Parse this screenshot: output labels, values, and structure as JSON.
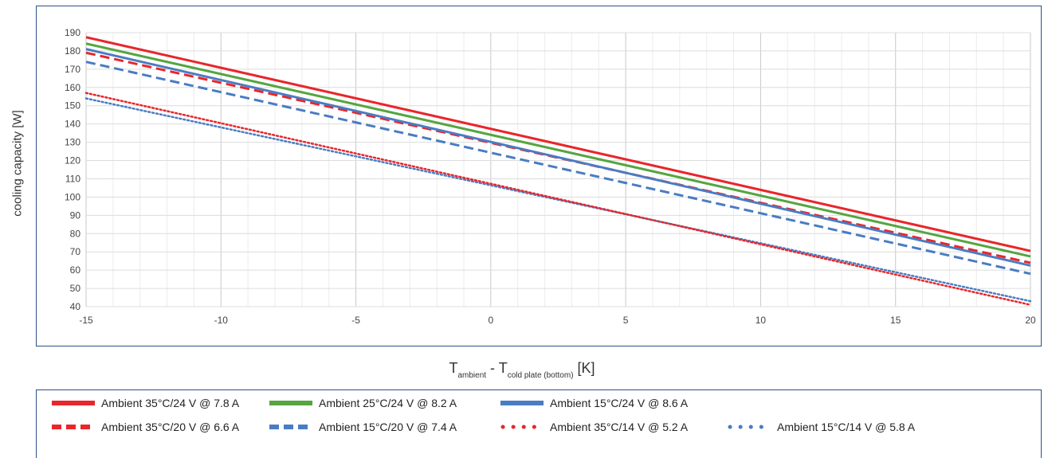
{
  "chart_data": {
    "type": "line",
    "xlabel": {
      "main": "T",
      "sub1": "ambient",
      "mid": " - T",
      "sub2": "cold plate (bottom)",
      "unit": " [K]"
    },
    "ylabel": "cooling capacity [W]",
    "xlim": [
      -15,
      20
    ],
    "ylim": [
      40,
      190
    ],
    "xticks": [
      -15,
      -10,
      -5,
      0,
      5,
      10,
      15,
      20
    ],
    "yticks": [
      40,
      50,
      60,
      70,
      80,
      90,
      100,
      110,
      120,
      130,
      140,
      150,
      160,
      170,
      180,
      190
    ],
    "grid": true,
    "legend_position": "bottom",
    "series": [
      {
        "name": "Ambient 35°C/24 V @ 7.8 A",
        "color": "#e8262b",
        "style": "solid",
        "x": [
          -15,
          20
        ],
        "y": [
          187.5,
          70.5
        ]
      },
      {
        "name": "Ambient 25°C/24 V @ 8.2 A",
        "color": "#55a540",
        "style": "solid",
        "x": [
          -15,
          20
        ],
        "y": [
          184,
          67.5
        ]
      },
      {
        "name": "Ambient 15°C/24 V @ 8.6 A",
        "color": "#4a7cc2",
        "style": "solid",
        "x": [
          -15,
          20
        ],
        "y": [
          181,
          62.5
        ]
      },
      {
        "name": "Ambient 35°C/20 V @ 6.6 A",
        "color": "#e8262b",
        "style": "dashed",
        "x": [
          -15,
          20
        ],
        "y": [
          179,
          64
        ]
      },
      {
        "name": "Ambient 15°C/20 V @ 7.4 A",
        "color": "#4a7cc2",
        "style": "dashed",
        "x": [
          -15,
          20
        ],
        "y": [
          174,
          58
        ]
      },
      {
        "name": "Ambient 35°C/14 V @ 5.2 A",
        "color": "#e8262b",
        "style": "dotted",
        "x": [
          -15,
          20
        ],
        "y": [
          157,
          41
        ]
      },
      {
        "name": "Ambient 15°C/14 V @ 5.8 A",
        "color": "#4a7cc2",
        "style": "dotted",
        "x": [
          -15,
          20
        ],
        "y": [
          154,
          43
        ]
      }
    ]
  }
}
